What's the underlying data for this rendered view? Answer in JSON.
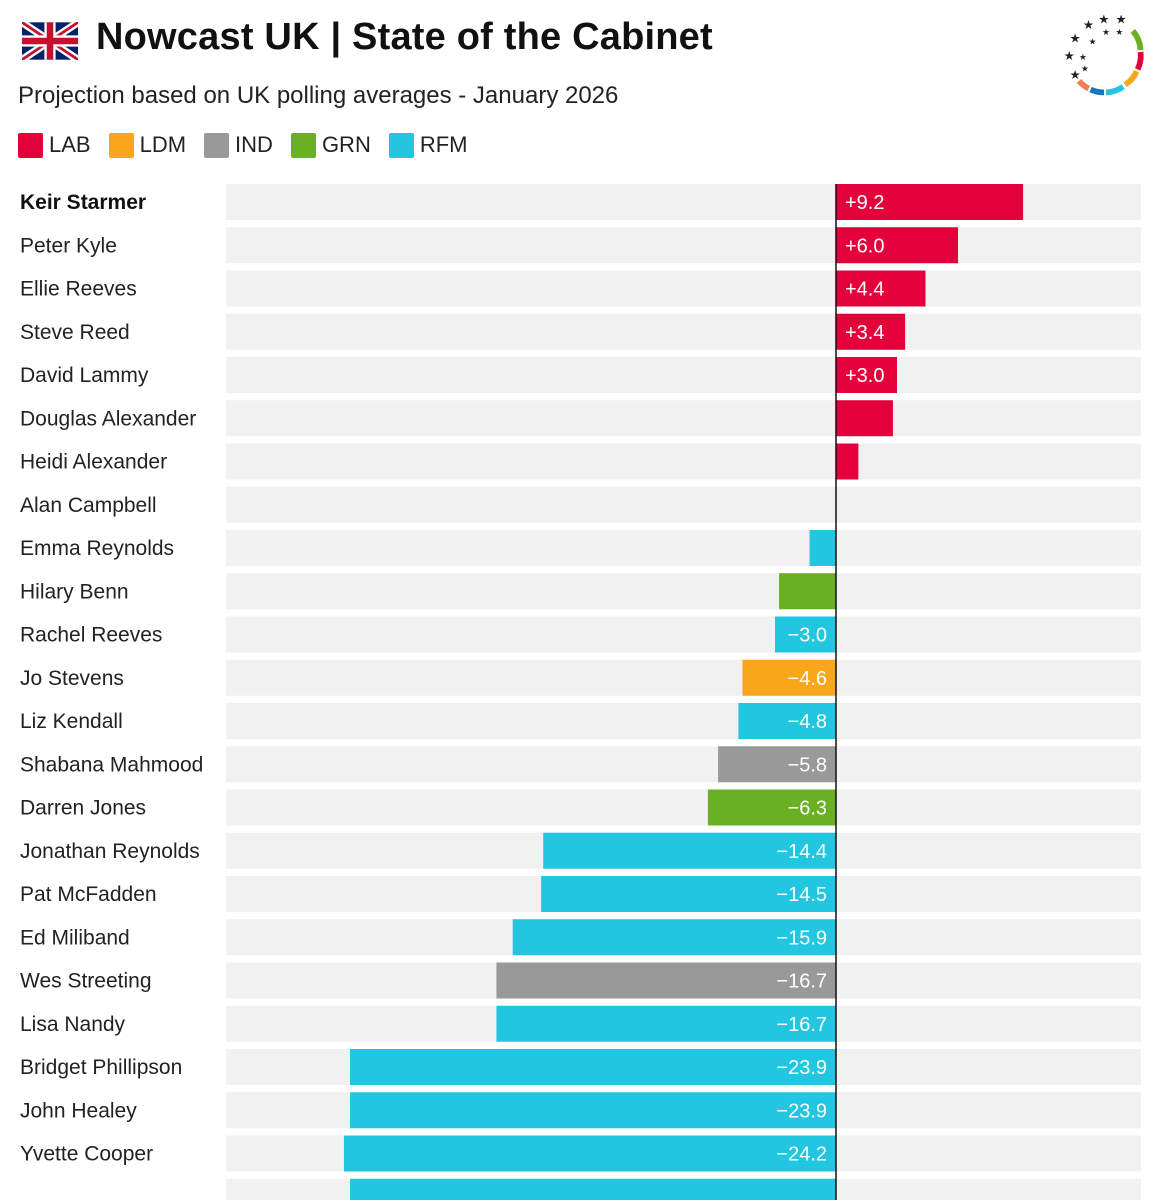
{
  "header": {
    "title": "Nowcast UK | State of the Cabinet",
    "subtitle": "Projection based on UK polling averages - January 2026"
  },
  "legend": [
    {
      "label": "LAB",
      "color": "#e4003b"
    },
    {
      "label": "LDM",
      "color": "#faa61a"
    },
    {
      "label": "IND",
      "color": "#999999"
    },
    {
      "label": "GRN",
      "color": "#6ab023"
    },
    {
      "label": "RFM",
      "color": "#22c6e0"
    }
  ],
  "icons": {
    "flag": "uk-flag-icon",
    "logo": "europe-elects-logo-icon"
  },
  "chart_data": {
    "type": "bar",
    "orientation": "horizontal",
    "title": "Nowcast UK | State of the Cabinet",
    "subtitle": "Projection based on UK polling averages - January 2026",
    "xlim": [
      -30,
      15
    ],
    "grid": false,
    "legend_position": "top-left",
    "party_colors": {
      "LAB": "#e4003b",
      "LDM": "#faa61a",
      "IND": "#999999",
      "GRN": "#6ab023",
      "RFM": "#22c6e0"
    },
    "rows": [
      {
        "name": "Keir Starmer",
        "value": 9.2,
        "label": "+9.2",
        "party": "LAB",
        "bold": true
      },
      {
        "name": "Peter Kyle",
        "value": 6.0,
        "label": "+6.0",
        "party": "LAB"
      },
      {
        "name": "Ellie Reeves",
        "value": 4.4,
        "label": "+4.4",
        "party": "LAB"
      },
      {
        "name": "Steve Reed",
        "value": 3.4,
        "label": "+3.4",
        "party": "LAB"
      },
      {
        "name": "David Lammy",
        "value": 3.0,
        "label": "+3.0",
        "party": "LAB"
      },
      {
        "name": "Douglas Alexander",
        "value": 2.8,
        "label": "",
        "party": "LAB"
      },
      {
        "name": "Heidi Alexander",
        "value": 1.1,
        "label": "",
        "party": "LAB"
      },
      {
        "name": "Alan Campbell",
        "value": 0,
        "label": "",
        "party": "LAB"
      },
      {
        "name": "Emma Reynolds",
        "value": -1.3,
        "label": "",
        "party": "RFM"
      },
      {
        "name": "Hilary Benn",
        "value": -2.8,
        "label": "",
        "party": "GRN"
      },
      {
        "name": "Rachel Reeves",
        "value": -3.0,
        "label": "−3.0",
        "party": "RFM"
      },
      {
        "name": "Jo Stevens",
        "value": -4.6,
        "label": "−4.6",
        "party": "LDM"
      },
      {
        "name": "Liz Kendall",
        "value": -4.8,
        "label": "−4.8",
        "party": "RFM"
      },
      {
        "name": "Shabana Mahmood",
        "value": -5.8,
        "label": "−5.8",
        "party": "IND"
      },
      {
        "name": "Darren Jones",
        "value": -6.3,
        "label": "−6.3",
        "party": "GRN"
      },
      {
        "name": "Jonathan Reynolds",
        "value": -14.4,
        "label": "−14.4",
        "party": "RFM"
      },
      {
        "name": "Pat McFadden",
        "value": -14.5,
        "label": "−14.5",
        "party": "RFM"
      },
      {
        "name": "Ed Miliband",
        "value": -15.9,
        "label": "−15.9",
        "party": "RFM"
      },
      {
        "name": "Wes Streeting",
        "value": -16.7,
        "label": "−16.7",
        "party": "IND"
      },
      {
        "name": "Lisa Nandy",
        "value": -16.7,
        "label": "−16.7",
        "party": "RFM"
      },
      {
        "name": "Bridget Phillipson",
        "value": -23.9,
        "label": "−23.9",
        "party": "RFM"
      },
      {
        "name": "John Healey",
        "value": -23.9,
        "label": "−23.9",
        "party": "RFM"
      },
      {
        "name": "Yvette Cooper",
        "value": -24.2,
        "label": "−24.2",
        "party": "RFM"
      },
      {
        "name": "",
        "value": -23.9,
        "label": "",
        "party": "RFM"
      }
    ]
  }
}
